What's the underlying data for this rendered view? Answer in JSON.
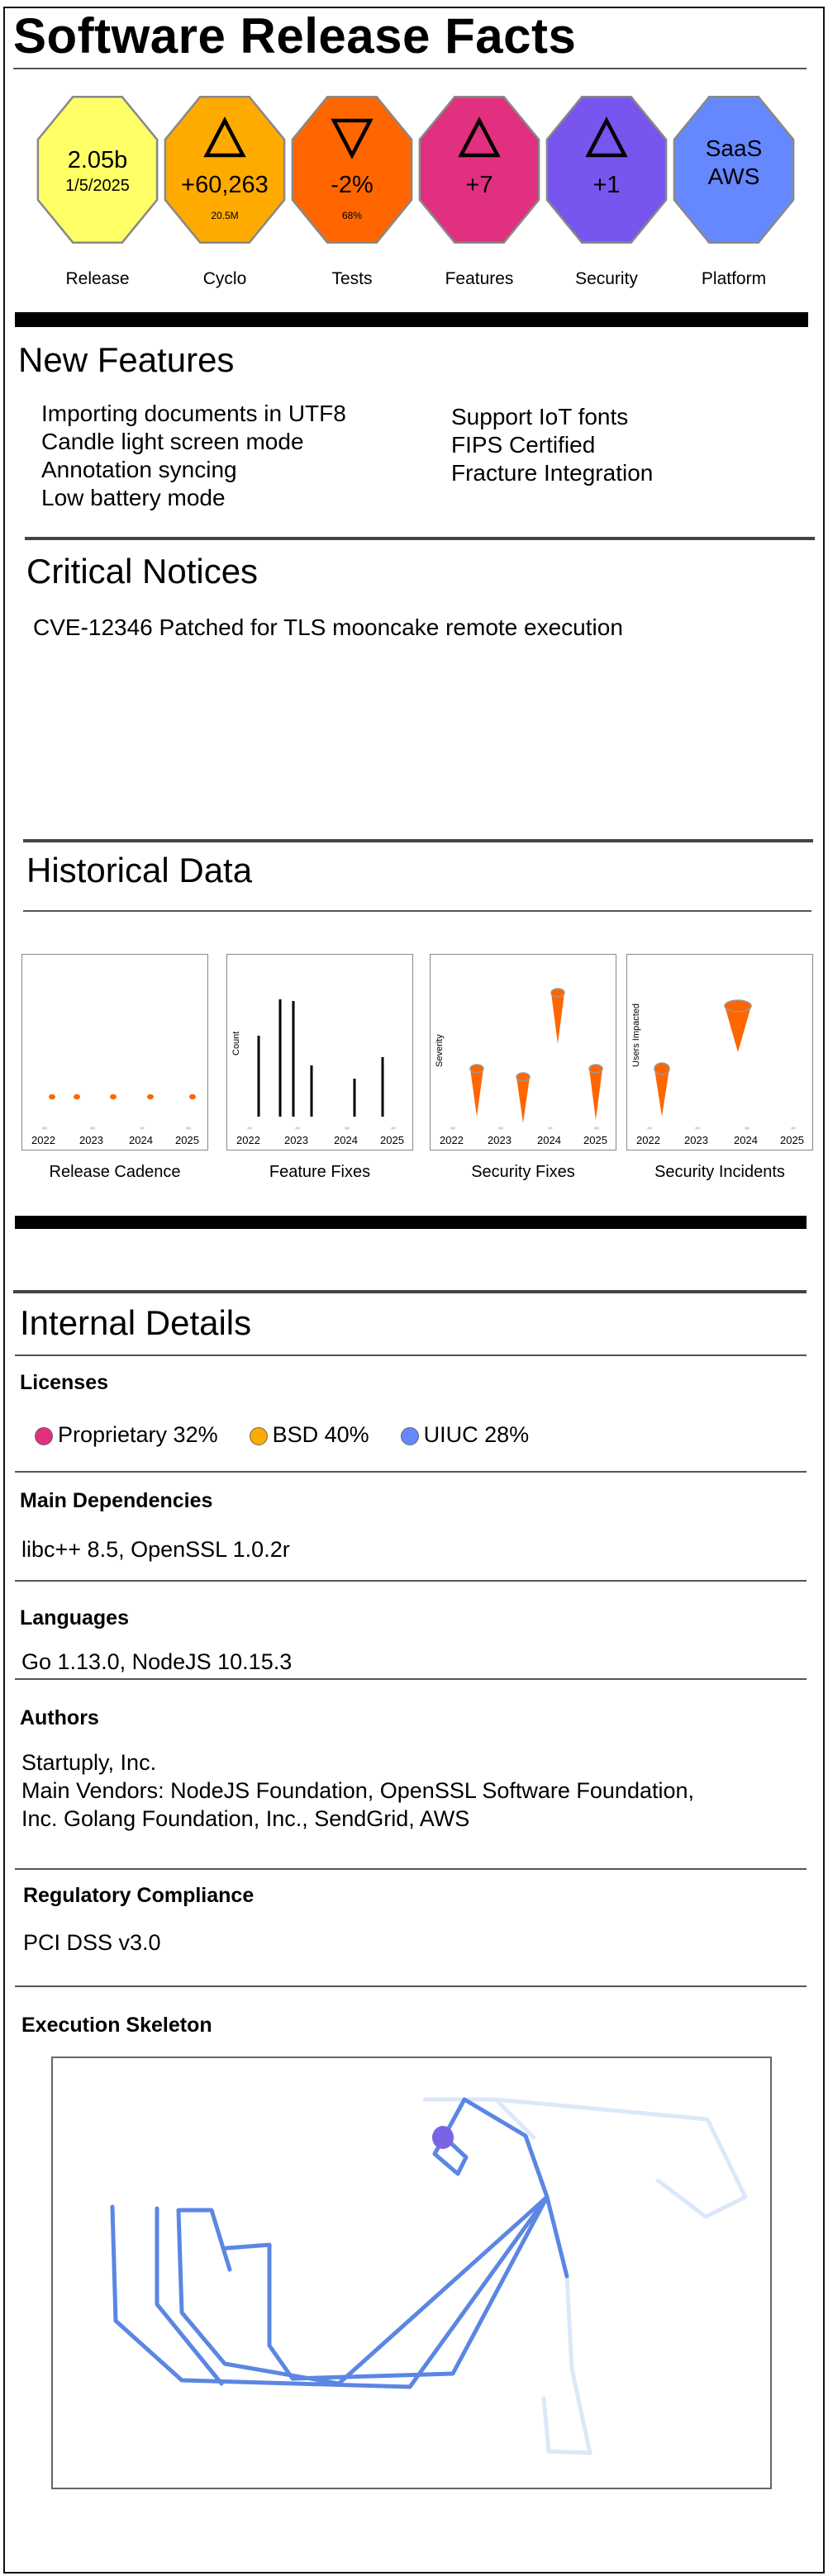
{
  "header": {
    "title": "Software Release Facts"
  },
  "metrics": [
    {
      "id": "release",
      "label": "Release",
      "value": "2.05b",
      "sub": "1/5/2025",
      "arrow": "",
      "small": "",
      "color": "#ffff66"
    },
    {
      "id": "cyclo",
      "label": "Cyclo",
      "value": "+60,263",
      "sub": "",
      "arrow": "up",
      "small": "20.5M",
      "color": "#ffaa00"
    },
    {
      "id": "tests",
      "label": "Tests",
      "value": "-2%",
      "sub": "",
      "arrow": "down",
      "small": "68%",
      "color": "#ff6600"
    },
    {
      "id": "features",
      "label": "Features",
      "value": "+7",
      "sub": "",
      "arrow": "up",
      "small": "",
      "color": "#e0307f"
    },
    {
      "id": "security",
      "label": "Security",
      "value": "+1",
      "sub": "",
      "arrow": "up",
      "small": "",
      "color": "#7755ee"
    },
    {
      "id": "platform",
      "label": "Platform",
      "value": "SaaS",
      "sub": "AWS",
      "arrow": "",
      "small": "",
      "color": "#6688ff"
    }
  ],
  "new_features": {
    "heading": "New Features",
    "left": [
      "Importing documents in UTF8",
      "Candle light screen mode",
      "Annotation syncing",
      "Low battery mode"
    ],
    "right": [
      "Support IoT fonts",
      "FIPS Certified",
      "Fracture Integration"
    ]
  },
  "critical_notices": {
    "heading": "Critical Notices",
    "items": [
      "CVE-12346 Patched for TLS mooncake remote execution"
    ]
  },
  "historical": {
    "heading": "Historical Data",
    "charts": [
      {
        "caption": "Release Cadence",
        "ylabel": "",
        "ticks": [
          "2022",
          "2023",
          "2024",
          "2025"
        ]
      },
      {
        "caption": "Feature Fixes",
        "ylabel": "Count",
        "ticks": [
          "2022",
          "2023",
          "2024",
          "2025"
        ]
      },
      {
        "caption": "Security Fixes",
        "ylabel": "Severity",
        "ticks": [
          "2022",
          "2023",
          "2024",
          "2025"
        ]
      },
      {
        "caption": "Security Incidents",
        "ylabel": "Users Impacted",
        "ticks": [
          "2022",
          "2023",
          "2024",
          "2025"
        ]
      }
    ]
  },
  "internal": {
    "heading": "Internal Details",
    "licenses_title": "Licenses",
    "licenses": [
      {
        "name": "Proprietary 32%",
        "color": "#e0307f"
      },
      {
        "name": "BSD 40%",
        "color": "#ffaa00"
      },
      {
        "name": "UIUC 28%",
        "color": "#6688ff"
      }
    ],
    "deps_title": "Main Dependencies",
    "deps": "libc++ 8.5, OpenSSL 1.0.2r",
    "langs_title": "Languages",
    "langs": "Go 1.13.0, NodeJS 10.15.3",
    "authors_title": "Authors",
    "authors_line1": "Startuply, Inc.",
    "authors_line2": "Main Vendors: NodeJS Foundation, OpenSSL Software Foundation,",
    "authors_line3": "Inc. Golang Foundation, Inc., SendGrid, AWS",
    "reg_title": "Regulatory Compliance",
    "reg": "PCI DSS v3.0",
    "exec_title": "Execution Skeleton"
  }
}
